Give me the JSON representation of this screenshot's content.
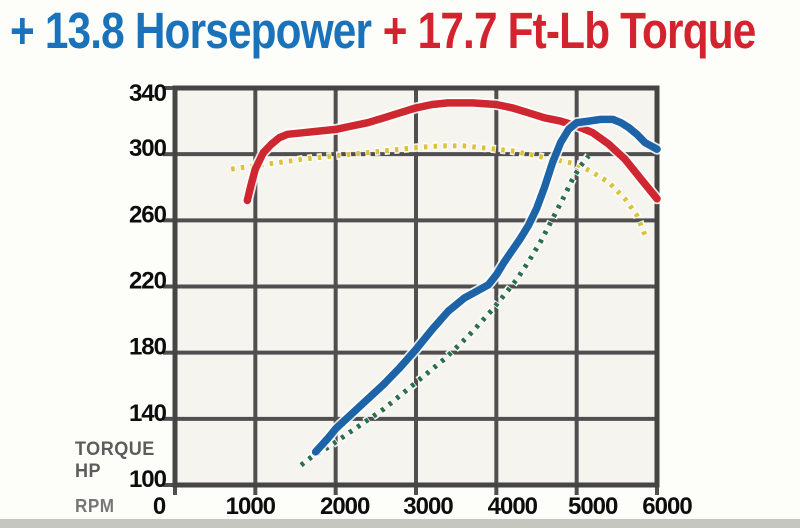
{
  "title": {
    "hp_gain": "+ 13.8 Horsepower",
    "torque_gain": "+ 17.7 Ft-Lb Torque"
  },
  "labels": {
    "torque": "TORQUE",
    "hp": "HP",
    "rpm": "RPM"
  },
  "colors": {
    "title_hp_blue": "#1a73ba",
    "title_torque_red": "#d2232e",
    "grid": "#4f4f4f",
    "border": "#454545",
    "axis_text": "#0d0d0d",
    "side_label": "#5c5c5c",
    "plot_bg": "#f6f4ef",
    "page_bg": "#fdfdfa",
    "bottom_strip": "#c6c6c1"
  },
  "chart_data": {
    "type": "line",
    "title": "",
    "xlabel": "RPM",
    "ylabel": "TORQUE / HP",
    "xlim": [
      0,
      6000
    ],
    "ylim": [
      100,
      340
    ],
    "x_ticks": [
      0,
      1000,
      2000,
      3000,
      4000,
      5000,
      6000
    ],
    "y_ticks": [
      340,
      300,
      260,
      220,
      180,
      140,
      100
    ],
    "grid": true,
    "legend_position": "none",
    "series": [
      {
        "name": "torque-before",
        "style": "dotted",
        "color": "#dcc23a",
        "points": [
          [
            700,
            291
          ],
          [
            850,
            292
          ],
          [
            1000,
            293
          ],
          [
            1150,
            294
          ],
          [
            1300,
            295
          ],
          [
            1450,
            296
          ],
          [
            1600,
            297
          ],
          [
            1800,
            298
          ],
          [
            2000,
            299
          ],
          [
            2200,
            300
          ],
          [
            2400,
            301
          ],
          [
            2600,
            302
          ],
          [
            2800,
            303
          ],
          [
            3000,
            304
          ],
          [
            3300,
            305
          ],
          [
            3600,
            305
          ],
          [
            3800,
            304
          ],
          [
            4000,
            303
          ],
          [
            4200,
            302
          ],
          [
            4400,
            300
          ],
          [
            4600,
            298
          ],
          [
            4800,
            296
          ],
          [
            5000,
            294
          ],
          [
            5200,
            289
          ],
          [
            5400,
            283
          ],
          [
            5600,
            273
          ],
          [
            5750,
            263
          ],
          [
            5850,
            251
          ]
        ]
      },
      {
        "name": "hp-before",
        "style": "dotted",
        "color": "#2a6f4e",
        "points": [
          [
            1570,
            112
          ],
          [
            1700,
            117
          ],
          [
            1850,
            121
          ],
          [
            2000,
            126
          ],
          [
            2150,
            131
          ],
          [
            2300,
            136
          ],
          [
            2450,
            141
          ],
          [
            2600,
            146
          ],
          [
            2750,
            152
          ],
          [
            2900,
            158
          ],
          [
            3050,
            164
          ],
          [
            3200,
            170
          ],
          [
            3350,
            176
          ],
          [
            3500,
            183
          ],
          [
            3650,
            190
          ],
          [
            3800,
            198
          ],
          [
            3950,
            206
          ],
          [
            4100,
            215
          ],
          [
            4250,
            224
          ],
          [
            4400,
            235
          ],
          [
            4550,
            247
          ],
          [
            4700,
            261
          ],
          [
            4850,
            275
          ],
          [
            4950,
            285
          ],
          [
            5050,
            293
          ],
          [
            5150,
            299
          ]
        ]
      },
      {
        "name": "torque-after",
        "style": "solid",
        "color": "#cf2730",
        "points": [
          [
            900,
            272
          ],
          [
            950,
            282
          ],
          [
            1000,
            291
          ],
          [
            1100,
            301
          ],
          [
            1200,
            306
          ],
          [
            1300,
            310
          ],
          [
            1400,
            312
          ],
          [
            1600,
            313
          ],
          [
            1800,
            314
          ],
          [
            2000,
            315
          ],
          [
            2200,
            317
          ],
          [
            2400,
            319
          ],
          [
            2600,
            322
          ],
          [
            2800,
            325
          ],
          [
            3000,
            328
          ],
          [
            3200,
            330
          ],
          [
            3400,
            331
          ],
          [
            3700,
            331
          ],
          [
            4000,
            330
          ],
          [
            4200,
            328
          ],
          [
            4400,
            325
          ],
          [
            4600,
            322
          ],
          [
            4800,
            320
          ],
          [
            5000,
            317
          ],
          [
            5200,
            313
          ],
          [
            5400,
            306
          ],
          [
            5600,
            297
          ],
          [
            5800,
            285
          ],
          [
            6000,
            273
          ]
        ]
      },
      {
        "name": "hp-after",
        "style": "solid",
        "color": "#1c64a7",
        "points": [
          [
            1750,
            120
          ],
          [
            1900,
            128
          ],
          [
            2000,
            134
          ],
          [
            2200,
            143
          ],
          [
            2400,
            152
          ],
          [
            2600,
            161
          ],
          [
            2800,
            171
          ],
          [
            3000,
            182
          ],
          [
            3200,
            194
          ],
          [
            3400,
            205
          ],
          [
            3600,
            213
          ],
          [
            3750,
            217
          ],
          [
            3900,
            221
          ],
          [
            4000,
            227
          ],
          [
            4100,
            235
          ],
          [
            4200,
            242
          ],
          [
            4300,
            249
          ],
          [
            4400,
            257
          ],
          [
            4500,
            267
          ],
          [
            4600,
            280
          ],
          [
            4700,
            295
          ],
          [
            4800,
            307
          ],
          [
            4900,
            315
          ],
          [
            5000,
            319
          ],
          [
            5150,
            320
          ],
          [
            5300,
            321
          ],
          [
            5450,
            321
          ],
          [
            5550,
            319
          ],
          [
            5650,
            316
          ],
          [
            5750,
            312
          ],
          [
            5850,
            307
          ],
          [
            6000,
            303
          ]
        ]
      }
    ]
  }
}
